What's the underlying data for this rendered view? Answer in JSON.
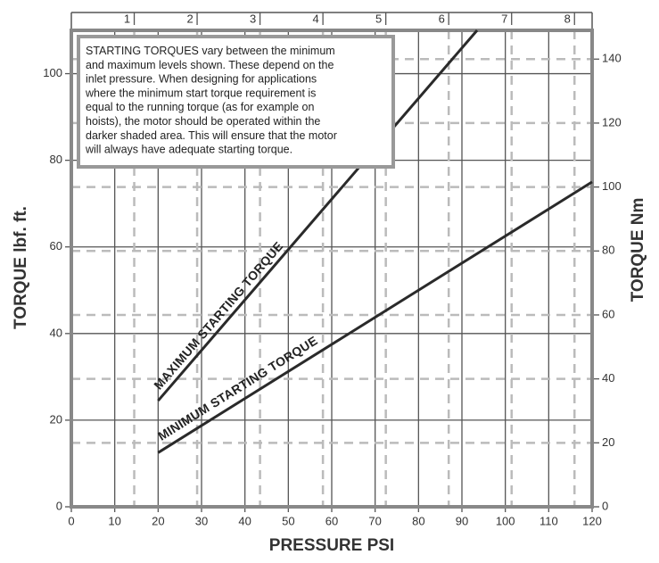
{
  "chart_data": {
    "type": "line",
    "xlabel": "PRESSURE PSI",
    "ylabel": "TORQUE lbf. ft.",
    "y2label": "TORQUE Nm",
    "xlim": [
      0,
      120
    ],
    "xticks": [
      0,
      10,
      20,
      30,
      40,
      50,
      60,
      70,
      80,
      90,
      100,
      110,
      120
    ],
    "ylim": [
      0,
      110
    ],
    "yticks": [
      0,
      20,
      40,
      60,
      80,
      100
    ],
    "y2lim": [
      0,
      149
    ],
    "y2ticks": [
      0,
      20,
      40,
      60,
      80,
      100,
      120,
      140
    ],
    "x2lim": [
      0,
      8.28
    ],
    "x2ticks": [
      1,
      2,
      3,
      4,
      5,
      6,
      7,
      8
    ],
    "grid": true,
    "annotation": [
      "STARTING TORQUES vary between the minimum",
      "and maximum levels shown. These depend on the",
      "inlet pressure. When designing for applications",
      "where the minimum start torque requirement is",
      "equal to the running torque (as for example on",
      "hoists), the motor should be operated within the",
      "darker shaded area. This will ensure that the motor",
      "will always have adequate starting torque."
    ],
    "series": [
      {
        "name": "MAXIMUM STARTING TORQUE",
        "color": "#2a2a2a",
        "x": [
          20,
          93.5
        ],
        "values": [
          24.5,
          110
        ]
      },
      {
        "name": "MINIMUM STARTING TORQUE",
        "color": "#2a2a2a",
        "x": [
          20,
          120
        ],
        "values": [
          12.5,
          75
        ]
      }
    ]
  }
}
